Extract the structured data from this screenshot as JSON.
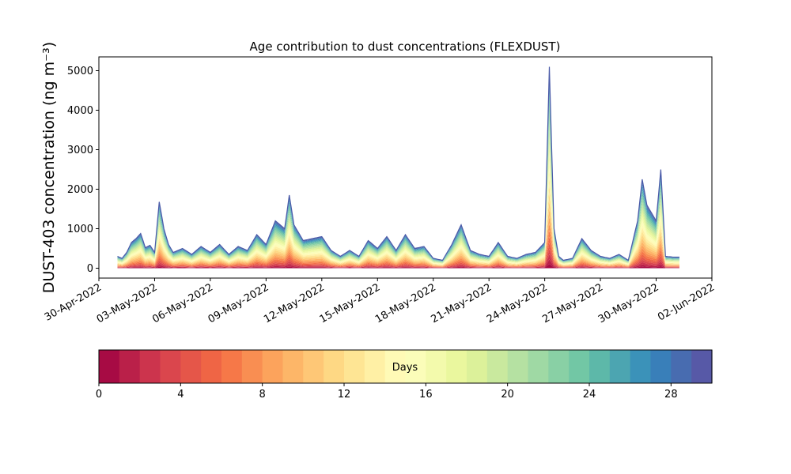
{
  "chart_data": {
    "type": "area",
    "stacked": true,
    "title": "Age contribution to dust concentrations (FLEXDUST)",
    "ylabel": "DUST-403 concentration (ng m⁻³)",
    "ylim": [
      -250,
      5350
    ],
    "yticks": [
      0,
      1000,
      2000,
      3000,
      4000,
      5000
    ],
    "x_start": "2022-05-01",
    "x_end": "2022-05-31",
    "xlim": [
      "2022-04-30",
      "2022-06-02"
    ],
    "xticks": [
      "30-Apr-2022",
      "03-May-2022",
      "06-May-2022",
      "09-May-2022",
      "12-May-2022",
      "15-May-2022",
      "18-May-2022",
      "21-May-2022",
      "24-May-2022",
      "27-May-2022",
      "30-May-2022",
      "02-Jun-2022"
    ],
    "total_concentration": {
      "dates": [
        "2022-05-01",
        "2022-05-01T06:00",
        "2022-05-01T12:00",
        "2022-05-01T18:00",
        "2022-05-02",
        "2022-05-02T06:00",
        "2022-05-02T12:00",
        "2022-05-02T18:00",
        "2022-05-03",
        "2022-05-03T06:00",
        "2022-05-03T12:00",
        "2022-05-03T18:00",
        "2022-05-04",
        "2022-05-04T12:00",
        "2022-05-05",
        "2022-05-05T12:00",
        "2022-05-06",
        "2022-05-06T12:00",
        "2022-05-07",
        "2022-05-07T12:00",
        "2022-05-08",
        "2022-05-08T12:00",
        "2022-05-09",
        "2022-05-09T12:00",
        "2022-05-10",
        "2022-05-10T06:00",
        "2022-05-10T12:00",
        "2022-05-11",
        "2022-05-11T12:00",
        "2022-05-12",
        "2022-05-12T12:00",
        "2022-05-13",
        "2022-05-13T12:00",
        "2022-05-14",
        "2022-05-14T12:00",
        "2022-05-15",
        "2022-05-15T12:00",
        "2022-05-16",
        "2022-05-16T12:00",
        "2022-05-17",
        "2022-05-17T12:00",
        "2022-05-18",
        "2022-05-18T12:00",
        "2022-05-19",
        "2022-05-19T12:00",
        "2022-05-20",
        "2022-05-20T12:00",
        "2022-05-21",
        "2022-05-21T12:00",
        "2022-05-22",
        "2022-05-22T12:00",
        "2022-05-23",
        "2022-05-23T12:00",
        "2022-05-24",
        "2022-05-24T06:00",
        "2022-05-24T12:00",
        "2022-05-24T18:00",
        "2022-05-25",
        "2022-05-25T12:00",
        "2022-05-26",
        "2022-05-26T12:00",
        "2022-05-27",
        "2022-05-27T12:00",
        "2022-05-28",
        "2022-05-28T12:00",
        "2022-05-29",
        "2022-05-29T06:00",
        "2022-05-29T12:00",
        "2022-05-30",
        "2022-05-30T06:00",
        "2022-05-30T12:00",
        "2022-05-31"
      ],
      "values": [
        300,
        250,
        400,
        650,
        750,
        880,
        520,
        580,
        400,
        1680,
        1000,
        600,
        400,
        500,
        350,
        550,
        400,
        600,
        350,
        550,
        450,
        850,
        600,
        1200,
        1000,
        1850,
        1100,
        700,
        750,
        800,
        450,
        300,
        450,
        300,
        700,
        500,
        800,
        450,
        850,
        500,
        550,
        250,
        200,
        600,
        1100,
        450,
        350,
        300,
        650,
        300,
        250,
        350,
        400,
        650,
        5100,
        1000,
        300,
        200,
        250,
        750,
        450,
        300,
        250,
        350,
        200,
        1200,
        2250,
        1600,
        1200,
        2500,
        300,
        280
      ]
    },
    "colorbar": {
      "label": "Days",
      "range": [
        0,
        30
      ],
      "levels": 30,
      "ticks": [
        0,
        4,
        8,
        12,
        16,
        20,
        24,
        28
      ],
      "colormap": "Spectral"
    }
  }
}
